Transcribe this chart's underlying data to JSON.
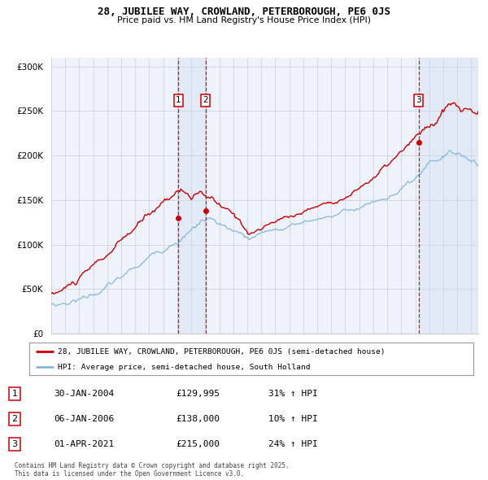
{
  "title": "28, JUBILEE WAY, CROWLAND, PETERBOROUGH, PE6 0JS",
  "subtitle": "Price paid vs. HM Land Registry's House Price Index (HPI)",
  "red_label": "28, JUBILEE WAY, CROWLAND, PETERBOROUGH, PE6 0JS (semi-detached house)",
  "blue_label": "HPI: Average price, semi-detached house, South Holland",
  "transactions": [
    {
      "num": 1,
      "date": "30-JAN-2004",
      "price": 129995,
      "pct": "31%",
      "dir": "↑",
      "year": 2004.08
    },
    {
      "num": 2,
      "date": "06-JAN-2006",
      "price": 138000,
      "pct": "10%",
      "dir": "↑",
      "year": 2006.02
    },
    {
      "num": 3,
      "date": "01-APR-2021",
      "price": 215000,
      "pct": "24%",
      "dir": "↑",
      "year": 2021.25
    }
  ],
  "footnote": "Contains HM Land Registry data © Crown copyright and database right 2025.\nThis data is licensed under the Open Government Licence v3.0.",
  "xmin": 1995,
  "xmax": 2025.5,
  "ymin": 0,
  "ymax": 310000,
  "yticks": [
    0,
    50000,
    100000,
    150000,
    200000,
    250000,
    300000
  ],
  "ytick_labels": [
    "£0",
    "£50K",
    "£100K",
    "£150K",
    "£200K",
    "£250K",
    "£300K"
  ],
  "background_color": "#ffffff",
  "plot_bg_color": "#eef2fb",
  "grid_color": "#cccccc",
  "red_color": "#cc0000",
  "blue_color": "#85b8d8",
  "highlight_color": "#ccddf0",
  "dashed_color": "#cc0000",
  "label_box_color": "#cc0000"
}
